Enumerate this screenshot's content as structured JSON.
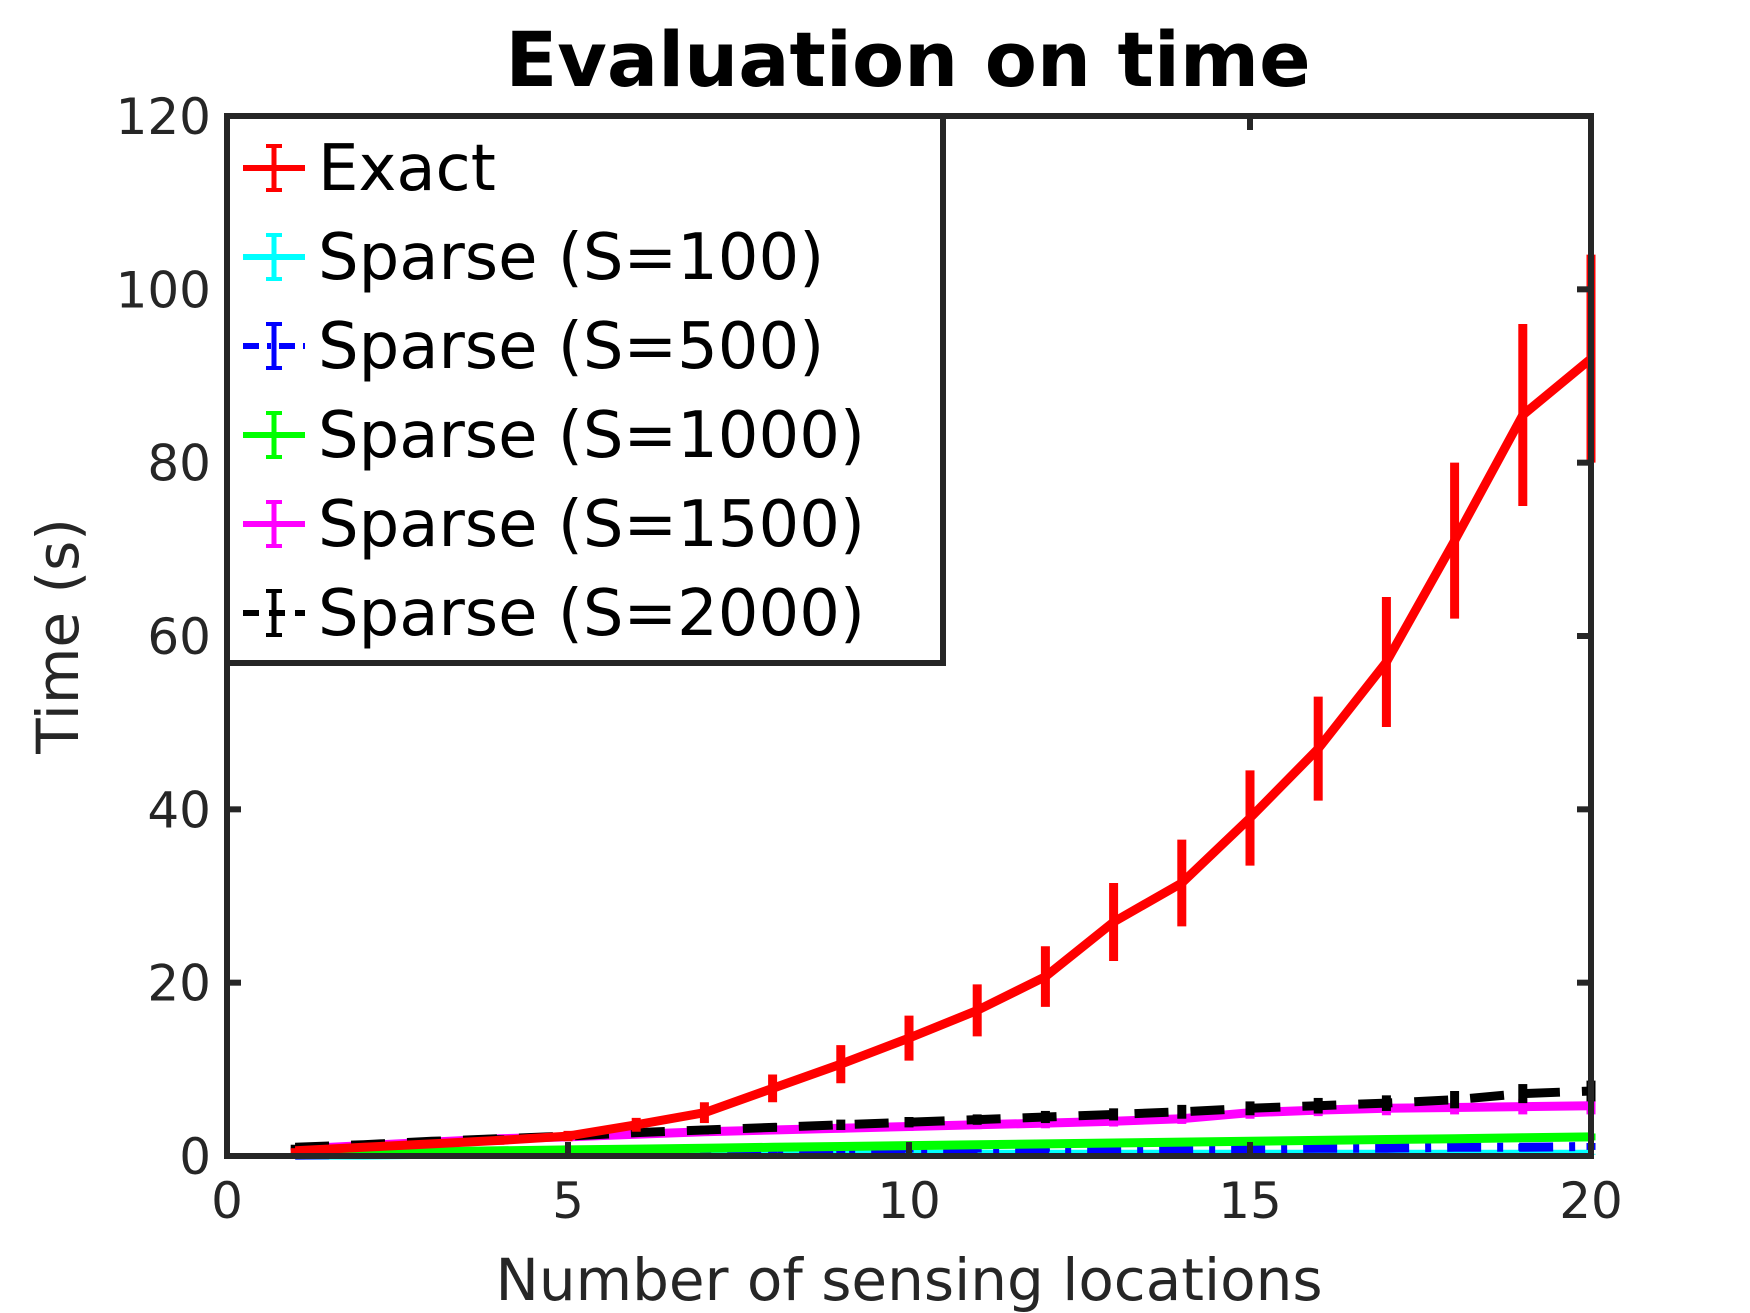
{
  "chart_data": {
    "type": "line",
    "title": "Evaluation on time",
    "xlabel": "Number of sensing locations",
    "ylabel": "Time (s)",
    "xlim": [
      0,
      20
    ],
    "ylim": [
      0,
      120
    ],
    "xticks": [
      0,
      5,
      10,
      15,
      20
    ],
    "yticks": [
      0,
      20,
      40,
      60,
      80,
      100,
      120
    ],
    "grid": false,
    "legend_position": "top-left",
    "x": [
      1,
      2,
      3,
      4,
      5,
      6,
      7,
      8,
      9,
      10,
      11,
      12,
      13,
      14,
      15,
      16,
      17,
      18,
      19,
      20
    ],
    "series": [
      {
        "name": "Exact",
        "color": "#ff0000",
        "dash": "solid",
        "values": [
          0.6,
          1.0,
          1.4,
          1.8,
          2.3,
          3.6,
          5.0,
          7.8,
          10.6,
          13.6,
          16.8,
          20.7,
          27.0,
          31.5,
          39.0,
          47.0,
          57.0,
          71.0,
          85.5,
          92.0
        ],
        "errors": [
          0.3,
          0.3,
          0.4,
          0.5,
          0.6,
          0.8,
          1.2,
          1.6,
          2.2,
          2.6,
          3.0,
          3.5,
          4.5,
          5.0,
          5.5,
          6.0,
          7.5,
          9.0,
          10.5,
          12.0
        ]
      },
      {
        "name": "Sparse (S=100)",
        "color": "#00ffff",
        "dash": "solid",
        "values": [
          0.1,
          0.1,
          0.2,
          0.2,
          0.2,
          0.2,
          0.2,
          0.2,
          0.2,
          0.2,
          0.2,
          0.2,
          0.2,
          0.2,
          0.2,
          0.2,
          0.2,
          0.2,
          0.2,
          0.2
        ],
        "errors": [
          0.05,
          0.05,
          0.05,
          0.05,
          0.05,
          0.05,
          0.05,
          0.05,
          0.05,
          0.05,
          0.05,
          0.05,
          0.05,
          0.05,
          0.05,
          0.05,
          0.05,
          0.05,
          0.05,
          0.05
        ]
      },
      {
        "name": "Sparse (S=500)",
        "color": "#0000ff",
        "dash": "dashdot",
        "values": [
          0.1,
          0.2,
          0.2,
          0.3,
          0.3,
          0.4,
          0.4,
          0.5,
          0.5,
          0.6,
          0.6,
          0.7,
          0.7,
          0.8,
          0.8,
          0.9,
          0.9,
          1.0,
          1.0,
          1.1
        ],
        "errors": [
          0.1,
          0.1,
          0.1,
          0.1,
          0.1,
          0.1,
          0.1,
          0.2,
          0.2,
          0.2,
          0.2,
          0.2,
          0.2,
          0.3,
          0.3,
          0.3,
          0.3,
          0.3,
          0.4,
          0.4
        ]
      },
      {
        "name": "Sparse (S=1000)",
        "color": "#00ff00",
        "dash": "solid",
        "values": [
          0.3,
          0.4,
          0.5,
          0.6,
          0.7,
          0.8,
          0.9,
          1.0,
          1.1,
          1.2,
          1.3,
          1.4,
          1.5,
          1.6,
          1.7,
          1.8,
          1.9,
          2.0,
          2.1,
          2.2
        ],
        "errors": [
          0.1,
          0.1,
          0.1,
          0.1,
          0.2,
          0.2,
          0.2,
          0.2,
          0.2,
          0.2,
          0.3,
          0.3,
          0.3,
          0.3,
          0.3,
          0.3,
          0.4,
          0.4,
          0.4,
          0.4
        ]
      },
      {
        "name": "Sparse (S=1500)",
        "color": "#ff00ff",
        "dash": "solid",
        "values": [
          0.8,
          1.2,
          1.6,
          2.0,
          2.2,
          2.5,
          2.8,
          3.0,
          3.2,
          3.4,
          3.6,
          3.8,
          4.0,
          4.3,
          5.0,
          5.3,
          5.5,
          5.6,
          5.7,
          5.8
        ],
        "errors": [
          0.2,
          0.2,
          0.3,
          0.3,
          0.3,
          0.4,
          0.4,
          0.4,
          0.5,
          0.5,
          0.5,
          0.6,
          0.6,
          0.6,
          0.7,
          0.7,
          0.8,
          0.8,
          0.9,
          1.0
        ]
      },
      {
        "name": "Sparse (S=2000)",
        "color": "#000000",
        "dash": "dashed",
        "values": [
          1.0,
          1.3,
          1.7,
          2.0,
          2.3,
          2.7,
          3.0,
          3.3,
          3.6,
          3.9,
          4.2,
          4.5,
          4.8,
          5.1,
          5.5,
          5.8,
          6.1,
          6.5,
          7.2,
          7.5
        ],
        "errors": [
          0.3,
          0.3,
          0.4,
          0.4,
          0.4,
          0.5,
          0.5,
          0.5,
          0.6,
          0.6,
          0.6,
          0.7,
          0.7,
          0.8,
          0.8,
          0.9,
          0.9,
          1.0,
          1.1,
          1.2
        ]
      }
    ]
  }
}
